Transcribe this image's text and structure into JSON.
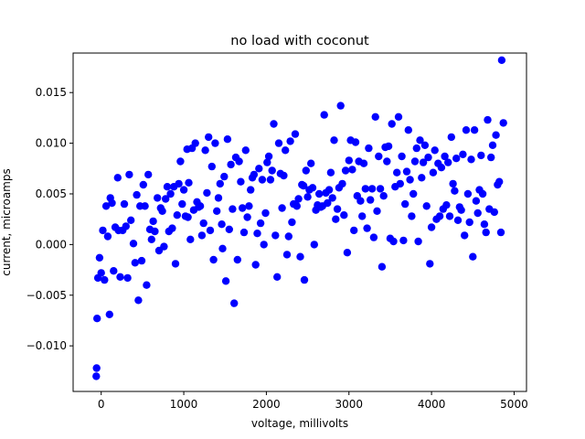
{
  "chart_data": {
    "type": "scatter",
    "title": "no load with coconut",
    "xlabel": "voltage, millivolts",
    "ylabel": "current, microamps",
    "xlim": [
      -340,
      5150
    ],
    "ylim": [
      -0.0145,
      0.0189
    ],
    "xticks": [
      0,
      1000,
      2000,
      3000,
      4000,
      5000
    ],
    "xtick_labels": [
      "0",
      "1000",
      "2000",
      "3000",
      "4000",
      "5000"
    ],
    "yticks": [
      -0.01,
      -0.005,
      0.0,
      0.005,
      0.01,
      0.015
    ],
    "ytick_labels": [
      "−0.010",
      "−0.005",
      "0.000",
      "0.005",
      "0.010",
      "0.015"
    ],
    "grid": false,
    "marker_color": "#0000ff",
    "points": [
      [
        -60,
        -0.013
      ],
      [
        -55,
        -0.0122
      ],
      [
        -50,
        -0.0073
      ],
      [
        -40,
        -0.0033
      ],
      [
        -20,
        -0.0013
      ],
      [
        0,
        -0.0028
      ],
      [
        20,
        0.0014
      ],
      [
        40,
        -0.0035
      ],
      [
        60,
        0.0038
      ],
      [
        80,
        0.0008
      ],
      [
        100,
        -0.0069
      ],
      [
        110,
        0.0046
      ],
      [
        130,
        0.0041
      ],
      [
        150,
        -0.0026
      ],
      [
        170,
        0.0017
      ],
      [
        200,
        0.0066
      ],
      [
        210,
        0.0014
      ],
      [
        230,
        -0.0032
      ],
      [
        260,
        0.0014
      ],
      [
        280,
        0.004
      ],
      [
        300,
        0.0018
      ],
      [
        320,
        -0.0033
      ],
      [
        340,
        0.0069
      ],
      [
        360,
        0.0024
      ],
      [
        390,
        0.0001
      ],
      [
        410,
        -0.0018
      ],
      [
        430,
        0.0049
      ],
      [
        450,
        -0.0055
      ],
      [
        470,
        0.0038
      ],
      [
        490,
        -0.0016
      ],
      [
        510,
        0.0059
      ],
      [
        530,
        0.0038
      ],
      [
        550,
        -0.004
      ],
      [
        570,
        0.0069
      ],
      [
        590,
        0.0015
      ],
      [
        610,
        0.0005
      ],
      [
        630,
        0.0023
      ],
      [
        650,
        0.0013
      ],
      [
        680,
        0.0046
      ],
      [
        700,
        -0.0006
      ],
      [
        720,
        0.0036
      ],
      [
        740,
        0.0033
      ],
      [
        760,
        -0.0002
      ],
      [
        780,
        0.0045
      ],
      [
        800,
        0.0057
      ],
      [
        820,
        0.0013
      ],
      [
        840,
        0.005
      ],
      [
        860,
        0.0016
      ],
      [
        880,
        0.0057
      ],
      [
        900,
        -0.0019
      ],
      [
        920,
        0.0029
      ],
      [
        940,
        0.006
      ],
      [
        960,
        0.0082
      ],
      [
        980,
        0.004
      ],
      [
        1000,
        0.0054
      ],
      [
        1020,
        0.0028
      ],
      [
        1040,
        0.0094
      ],
      [
        1050,
        0.0027
      ],
      [
        1060,
        0.0061
      ],
      [
        1080,
        0.0005
      ],
      [
        1100,
        0.0095
      ],
      [
        1120,
        0.0034
      ],
      [
        1140,
        0.01
      ],
      [
        1160,
        0.0042
      ],
      [
        1180,
        0.0037
      ],
      [
        1200,
        0.0038
      ],
      [
        1220,
        0.0009
      ],
      [
        1240,
        0.0021
      ],
      [
        1260,
        0.0093
      ],
      [
        1280,
        0.0051
      ],
      [
        1300,
        0.0106
      ],
      [
        1320,
        0.0014
      ],
      [
        1340,
        0.0077
      ],
      [
        1360,
        -0.0015
      ],
      [
        1380,
        0.01
      ],
      [
        1400,
        0.0033
      ],
      [
        1420,
        0.0046
      ],
      [
        1440,
        0.006
      ],
      [
        1460,
        0.002
      ],
      [
        1470,
        -0.0004
      ],
      [
        1490,
        0.0067
      ],
      [
        1510,
        -0.0036
      ],
      [
        1530,
        0.0104
      ],
      [
        1550,
        0.0015
      ],
      [
        1570,
        0.0079
      ],
      [
        1590,
        0.0035
      ],
      [
        1610,
        -0.0058
      ],
      [
        1630,
        0.0086
      ],
      [
        1650,
        -0.0015
      ],
      [
        1670,
        0.0082
      ],
      [
        1690,
        0.0062
      ],
      [
        1710,
        0.0036
      ],
      [
        1730,
        0.0012
      ],
      [
        1750,
        0.0093
      ],
      [
        1770,
        0.0027
      ],
      [
        1790,
        0.0038
      ],
      [
        1810,
        0.0054
      ],
      [
        1830,
        0.0066
      ],
      [
        1850,
        0.0069
      ],
      [
        1870,
        -0.002
      ],
      [
        1890,
        0.0011
      ],
      [
        1910,
        0.0075
      ],
      [
        1930,
        0.0021
      ],
      [
        1950,
        0.0064
      ],
      [
        1970,
        0.0
      ],
      [
        1990,
        0.0031
      ],
      [
        2010,
        0.0081
      ],
      [
        2030,
        0.0087
      ],
      [
        2050,
        0.0064
      ],
      [
        2070,
        0.0073
      ],
      [
        2090,
        0.0119
      ],
      [
        2110,
        0.0009
      ],
      [
        2130,
        -0.0032
      ],
      [
        2150,
        0.01
      ],
      [
        2170,
        0.007
      ],
      [
        2190,
        0.0036
      ],
      [
        2210,
        0.0068
      ],
      [
        2230,
        0.0093
      ],
      [
        2250,
        -0.001
      ],
      [
        2270,
        0.0008
      ],
      [
        2290,
        0.0102
      ],
      [
        2310,
        0.0022
      ],
      [
        2330,
        0.004
      ],
      [
        2350,
        0.0109
      ],
      [
        2370,
        0.0038
      ],
      [
        2390,
        0.0045
      ],
      [
        2410,
        -0.0012
      ],
      [
        2430,
        0.0059
      ],
      [
        2450,
        0.0058
      ],
      [
        2460,
        -0.0035
      ],
      [
        2480,
        0.0073
      ],
      [
        2500,
        0.0047
      ],
      [
        2520,
        0.0054
      ],
      [
        2540,
        0.008
      ],
      [
        2560,
        0.0056
      ],
      [
        2580,
        0.0
      ],
      [
        2600,
        0.0034
      ],
      [
        2620,
        0.0039
      ],
      [
        2640,
        0.005
      ],
      [
        2660,
        0.0037
      ],
      [
        2680,
        0.0038
      ],
      [
        2700,
        0.0128
      ],
      [
        2720,
        0.0051
      ],
      [
        2740,
        0.0041
      ],
      [
        2760,
        0.0054
      ],
      [
        2780,
        0.0071
      ],
      [
        2800,
        0.0046
      ],
      [
        2820,
        0.0103
      ],
      [
        2840,
        0.0025
      ],
      [
        2860,
        0.0035
      ],
      [
        2880,
        0.0056
      ],
      [
        2900,
        0.0137
      ],
      [
        2920,
        0.006
      ],
      [
        2940,
        0.0029
      ],
      [
        2960,
        0.0073
      ],
      [
        2980,
        -0.0008
      ],
      [
        3000,
        0.0083
      ],
      [
        3020,
        0.0103
      ],
      [
        3040,
        0.0074
      ],
      [
        3060,
        0.0014
      ],
      [
        3080,
        0.0101
      ],
      [
        3100,
        0.0048
      ],
      [
        3120,
        0.0082
      ],
      [
        3140,
        0.0043
      ],
      [
        3160,
        0.0028
      ],
      [
        3180,
        0.008
      ],
      [
        3200,
        0.0055
      ],
      [
        3220,
        0.0016
      ],
      [
        3240,
        0.0095
      ],
      [
        3260,
        0.0044
      ],
      [
        3280,
        0.0055
      ],
      [
        3300,
        0.0007
      ],
      [
        3320,
        0.0126
      ],
      [
        3340,
        0.0033
      ],
      [
        3360,
        0.0087
      ],
      [
        3380,
        0.0055
      ],
      [
        3400,
        -0.0022
      ],
      [
        3420,
        0.0048
      ],
      [
        3440,
        0.0096
      ],
      [
        3460,
        0.0082
      ],
      [
        3480,
        0.0097
      ],
      [
        3500,
        0.0006
      ],
      [
        3520,
        0.0119
      ],
      [
        3540,
        0.0003
      ],
      [
        3560,
        0.0057
      ],
      [
        3580,
        0.0071
      ],
      [
        3600,
        0.0126
      ],
      [
        3620,
        0.006
      ],
      [
        3640,
        0.0087
      ],
      [
        3660,
        0.0004
      ],
      [
        3680,
        0.004
      ],
      [
        3700,
        0.0072
      ],
      [
        3720,
        0.0113
      ],
      [
        3740,
        0.0064
      ],
      [
        3760,
        0.0028
      ],
      [
        3780,
        0.005
      ],
      [
        3800,
        0.0082
      ],
      [
        3820,
        0.0095
      ],
      [
        3840,
        0.0003
      ],
      [
        3860,
        0.0103
      ],
      [
        3880,
        0.0066
      ],
      [
        3900,
        0.0081
      ],
      [
        3920,
        0.0098
      ],
      [
        3940,
        0.0038
      ],
      [
        3960,
        0.0086
      ],
      [
        3980,
        -0.0019
      ],
      [
        4000,
        0.0017
      ],
      [
        4020,
        0.0071
      ],
      [
        4040,
        0.0093
      ],
      [
        4060,
        0.0025
      ],
      [
        4080,
        0.008
      ],
      [
        4100,
        0.0028
      ],
      [
        4120,
        0.0076
      ],
      [
        4140,
        0.0035
      ],
      [
        4160,
        0.0087
      ],
      [
        4180,
        0.0039
      ],
      [
        4200,
        0.0081
      ],
      [
        4220,
        0.0028
      ],
      [
        4240,
        0.0106
      ],
      [
        4260,
        0.006
      ],
      [
        4280,
        0.0053
      ],
      [
        4300,
        0.0085
      ],
      [
        4320,
        0.0024
      ],
      [
        4340,
        0.0037
      ],
      [
        4360,
        0.0034
      ],
      [
        4380,
        0.0089
      ],
      [
        4400,
        0.0009
      ],
      [
        4420,
        0.0113
      ],
      [
        4440,
        0.005
      ],
      [
        4460,
        0.0022
      ],
      [
        4480,
        0.0084
      ],
      [
        4500,
        -0.0012
      ],
      [
        4520,
        0.0113
      ],
      [
        4540,
        0.0043
      ],
      [
        4560,
        0.0031
      ],
      [
        4580,
        0.0054
      ],
      [
        4600,
        0.0088
      ],
      [
        4620,
        0.005
      ],
      [
        4640,
        0.002
      ],
      [
        4660,
        0.0012
      ],
      [
        4680,
        0.0123
      ],
      [
        4700,
        0.0035
      ],
      [
        4720,
        0.0086
      ],
      [
        4740,
        0.0098
      ],
      [
        4760,
        0.0032
      ],
      [
        4780,
        0.0108
      ],
      [
        4800,
        0.0059
      ],
      [
        4820,
        0.0062
      ],
      [
        4840,
        0.0012
      ],
      [
        4850,
        0.0182
      ],
      [
        4870,
        0.012
      ]
    ]
  }
}
